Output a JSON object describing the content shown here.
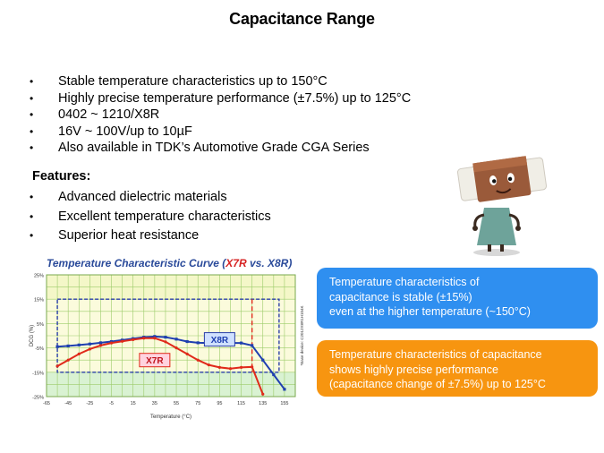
{
  "slide": {
    "title": "Capacitance Range",
    "bullets": [
      "Stable temperature characteristics up to 150°C",
      "Highly precise temperature performance (±7.5%) up to 125°C",
      "0402 ~ 1210/X8R",
      "16V ~ 100V/up to 10µF",
      "Also available in TDK’s Automotive Grade CGA Series"
    ],
    "features_heading": "Features:",
    "features": [
      "Advanced dielectric materials",
      "Excellent temperature characteristics",
      "Superior heat resistance"
    ],
    "callouts": {
      "blue": [
        "Temperature  characteristics of",
        "capacitance is stable (±15%)",
        "even at the higher  temperature  (~150°C)"
      ],
      "orange": [
        "Temperature characteristics of capacitance",
        "shows highly precise performance",
        "(capacitance change of ±7.5%) up to 125°C"
      ]
    },
    "colors": {
      "callout_blue": "#2f8ff0",
      "callout_orange": "#f79510",
      "x7r": "#e02a1a",
      "x8r": "#1f3fb0"
    }
  },
  "chart_data": {
    "type": "line",
    "title": "Temperature Characteristic Curve (X7R vs. X8R)",
    "title_prefix": "Temperature Characteristic Curve (",
    "title_x7r": "X7R",
    "title_vs": " vs. ",
    "title_x8r": "X8R",
    "title_suffix": ")",
    "xlabel": "Temperature (°C)",
    "ylabel": "DCG (%)",
    "side_note": "*Base device: C2012X8R1H104K",
    "x_ticks": [
      "-65",
      "-45",
      "-25",
      "-5",
      "15",
      "35",
      "55",
      "75",
      "95",
      "115",
      "135",
      "155"
    ],
    "x_tick_values": [
      -65,
      -45,
      -25,
      -5,
      15,
      35,
      55,
      75,
      95,
      115,
      135,
      155
    ],
    "y_ticks": [
      "25%",
      "15%",
      "5%",
      "-5%",
      "-15%",
      "-25%"
    ],
    "y_tick_values": [
      25,
      15,
      5,
      -5,
      -15,
      -25
    ],
    "xlim": [
      -65,
      165
    ],
    "ylim": [
      -25,
      25
    ],
    "grid": true,
    "series": [
      {
        "name": "X8R",
        "color": "#1f3fb0",
        "x": [
          -55,
          -45,
          -35,
          -25,
          -15,
          -5,
          5,
          15,
          25,
          35,
          45,
          55,
          65,
          75,
          85,
          95,
          105,
          115,
          125,
          135,
          145,
          155
        ],
        "y": [
          -4.5,
          -4.2,
          -3.8,
          -3.4,
          -2.9,
          -2.4,
          -1.8,
          -1.2,
          -0.6,
          -0.3,
          -0.6,
          -1.4,
          -2.4,
          -2.9,
          -3.0,
          -3.0,
          -3.0,
          -3.0,
          -4.0,
          -10,
          -16,
          -22
        ]
      },
      {
        "name": "X7R",
        "color": "#e02a1a",
        "x": [
          -55,
          -45,
          -35,
          -25,
          -15,
          -5,
          5,
          15,
          25,
          35,
          45,
          55,
          65,
          75,
          85,
          95,
          105,
          115,
          125,
          135
        ],
        "y": [
          -12.5,
          -10,
          -7.5,
          -5.5,
          -4,
          -3,
          -2.3,
          -1.6,
          -1.0,
          -1.0,
          -2.5,
          -5.0,
          -7.5,
          -10,
          -12,
          -13,
          -13.5,
          -13,
          -12.8,
          -24
        ]
      }
    ],
    "limit_box_x8r": {
      "x": [
        -55,
        150
      ],
      "y": [
        -15,
        15
      ]
    },
    "limit_line_x7r": {
      "x": 125,
      "y": [
        -15,
        15
      ]
    },
    "labels": [
      {
        "text": "X8R",
        "x": 95,
        "y": -1.5
      },
      {
        "text": "X7R",
        "x": 35,
        "y": -10
      }
    ]
  }
}
